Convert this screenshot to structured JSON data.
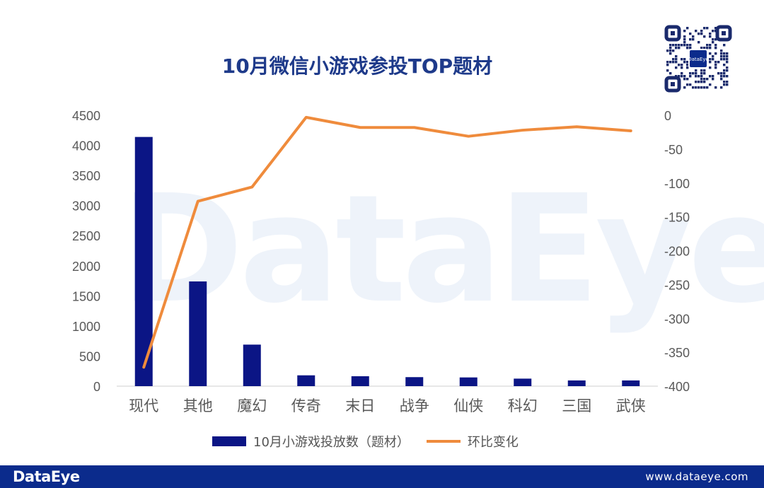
{
  "title": "10月微信小游戏参投TOP题材",
  "watermark": "DataEye",
  "footer": {
    "brand": "DataEye",
    "site": "www.dataeye.com"
  },
  "qr_label": "DataEye",
  "colors": {
    "bar": "#0b1585",
    "line": "#ef8b3c",
    "title": "#1e3a8a",
    "footer": "#0b2b8c"
  },
  "legend": [
    "10月小游戏投放数（题材）",
    "环比变化"
  ],
  "chart_data": {
    "type": "bar",
    "categories": [
      "现代",
      "其他",
      "魔幻",
      "传奇",
      "末日",
      "战争",
      "仙侠",
      "科幻",
      "三国",
      "武侠"
    ],
    "series": [
      {
        "name": "10月小游戏投放数（题材）",
        "type": "bar",
        "axis": "left",
        "values": [
          4140,
          1740,
          690,
          180,
          165,
          150,
          145,
          125,
          95,
          95
        ]
      },
      {
        "name": "环比变化",
        "type": "line",
        "axis": "right",
        "values": [
          -372,
          -127,
          -106,
          -3,
          -18,
          -18,
          -31,
          -22,
          -17,
          -23
        ]
      }
    ],
    "y_left": {
      "min": 0,
      "max": 4500,
      "ticks": [
        0,
        500,
        1000,
        1500,
        2000,
        2500,
        3000,
        3500,
        4000,
        4500
      ]
    },
    "y_right": {
      "min": -400,
      "max": 0,
      "ticks": [
        0,
        -50,
        -100,
        -150,
        -200,
        -250,
        -300,
        -350,
        -400
      ]
    },
    "grid": false,
    "legend_position": "bottom"
  }
}
